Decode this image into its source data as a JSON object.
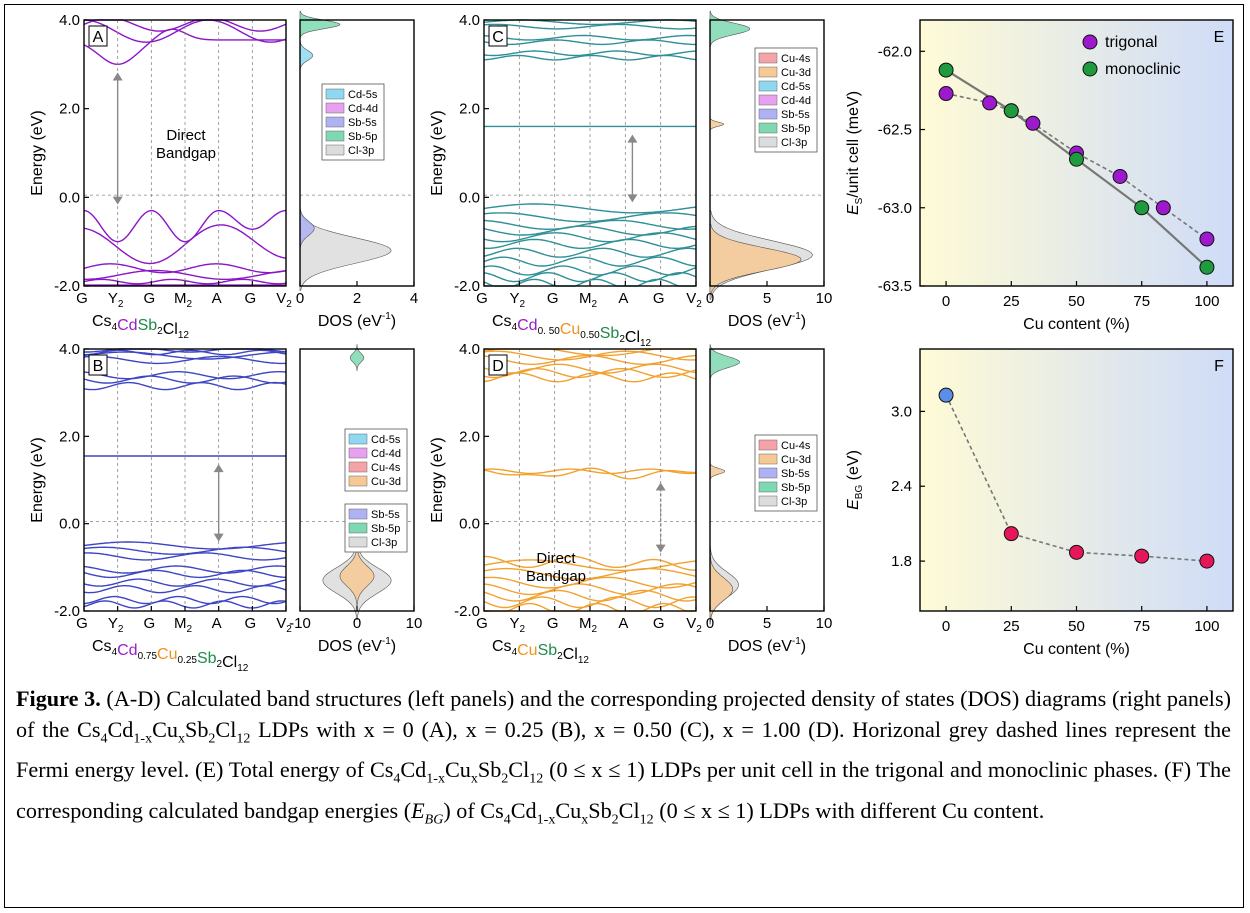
{
  "panels": {
    "A": {
      "letter": "A",
      "annotation": [
        "Direct",
        "Bandgap"
      ],
      "formula": [
        {
          "t": "Cs",
          "c": "k"
        },
        {
          "t": "4",
          "sub": true,
          "c": "k"
        },
        {
          "t": "Cd",
          "c": "purple"
        },
        {
          "t": "Sb",
          "c": "green"
        },
        {
          "t": "2",
          "sub": true,
          "c": "k"
        },
        {
          "t": "Cl",
          "c": "k"
        },
        {
          "t": "12",
          "sub": true,
          "c": "k"
        }
      ],
      "dos_xticks": [
        "0",
        "2",
        "4"
      ],
      "legend": [
        "Cd-5s",
        "Cd-4d",
        "Sb-5s",
        "Sb-5p",
        "Cl-3p"
      ]
    },
    "B": {
      "letter": "B",
      "formula": [
        {
          "t": "Cs",
          "c": "k"
        },
        {
          "t": "4",
          "sub": true,
          "c": "k"
        },
        {
          "t": "Cd",
          "c": "purple"
        },
        {
          "t": "0.75",
          "sub": true,
          "c": "k"
        },
        {
          "t": "Cu",
          "c": "orange"
        },
        {
          "t": "0.25",
          "sub": true,
          "c": "k"
        },
        {
          "t": "Sb",
          "c": "green"
        },
        {
          "t": "2",
          "sub": true,
          "c": "k"
        },
        {
          "t": "Cl",
          "c": "k"
        },
        {
          "t": "12",
          "sub": true,
          "c": "k"
        }
      ],
      "dos_xticks": [
        "-10",
        "0",
        "10"
      ],
      "legend": [
        "Cd-5s",
        "Cd-4d",
        "Cu-4s",
        "Cu-3d"
      ],
      "legend2": [
        "Sb-5s",
        "Sb-5p",
        "Cl-3p"
      ]
    },
    "C": {
      "letter": "C",
      "formula": [
        {
          "t": "Cs",
          "c": "k"
        },
        {
          "t": "4",
          "sub": true,
          "c": "k"
        },
        {
          "t": "Cd",
          "c": "purple"
        },
        {
          "t": "0. 50",
          "sub": true,
          "c": "k"
        },
        {
          "t": "Cu",
          "c": "orange"
        },
        {
          "t": "0.50",
          "sub": true,
          "c": "k"
        },
        {
          "t": "Sb",
          "c": "green"
        },
        {
          "t": "2",
          "sub": true,
          "c": "k"
        },
        {
          "t": "Cl",
          "c": "k"
        },
        {
          "t": "12",
          "sub": true,
          "c": "k"
        }
      ],
      "dos_xticks": [
        "0",
        "5",
        "10"
      ],
      "legend": [
        "Cu-4s",
        "Cu-3d",
        "Cd-5s",
        "Cd-4d",
        "Sb-5s",
        "Sb-5p",
        "Cl-3p"
      ]
    },
    "D": {
      "letter": "D",
      "annotation": [
        "Direct",
        "Bandgap"
      ],
      "formula": [
        {
          "t": "Cs",
          "c": "k"
        },
        {
          "t": "4",
          "sub": true,
          "c": "k"
        },
        {
          "t": "Cu",
          "c": "orange"
        },
        {
          "t": "Sb",
          "c": "green"
        },
        {
          "t": "2",
          "sub": true,
          "c": "k"
        },
        {
          "t": "Cl",
          "c": "k"
        },
        {
          "t": "12",
          "sub": true,
          "c": "k"
        }
      ],
      "dos_xticks": [
        "0",
        "5",
        "10"
      ],
      "legend": [
        "Cu-4s",
        "Cu-3d",
        "Sb-5s",
        "Sb-5p",
        "Cl-3p"
      ]
    }
  },
  "band_common": {
    "kpoints": [
      "G",
      "Y",
      "G",
      "M",
      "A",
      "G",
      "V"
    ],
    "kpoint_subs": [
      "",
      "2",
      "",
      "2",
      "",
      "",
      "2"
    ],
    "yticks": [
      "4.0",
      "2.0",
      "0.0",
      "-2.0"
    ],
    "ylabel": "Energy (eV)",
    "dos_xlabel": "DOS (eV",
    "dos_xlabel_sup": "-1",
    "dos_xlabel_end": ")"
  },
  "colors": {
    "A_bands": "#8b16c8",
    "B_bands": "#3d45c4",
    "C_bands": "#2e8f96",
    "D_bands": "#f2a12e",
    "purple": "#9a1fc9",
    "green": "#1f8a4a",
    "orange": "#f0931c",
    "trigonal": "#9c19cc",
    "monoclinic": "#1f9a3e",
    "bandgap_first": "#5b8ee6",
    "bandgap_rest": "#e5175a"
  },
  "legend_colors": {
    "Cd-5s": "#8fd8f2",
    "Cd-4d": "#e7a1f0",
    "Cu-4s": "#f5a3a8",
    "Cu-3d": "#f6c894",
    "Sb-5s": "#aeb2f2",
    "Sb-5p": "#7ed8b2",
    "Cl-3p": "#dcdcdc"
  },
  "chart_data": [
    {
      "panel": "E",
      "type": "scatter",
      "xlabel": "Cu content (%)",
      "ylabel_main": "E",
      "ylabel_sub": "S",
      "ylabel_rest": "/unit cell (meV)",
      "xlim": [
        -10,
        110
      ],
      "ylim": [
        -63.5,
        -61.8
      ],
      "xticks": [
        0,
        25,
        50,
        75,
        100
      ],
      "yticks": [
        -62.0,
        -62.5,
        -63.0,
        -63.5
      ],
      "ytick_labels": [
        "-62.0",
        "-62.5",
        "-63.0",
        "-63.5"
      ],
      "series": [
        {
          "name": "trigonal",
          "x": [
            0,
            16.7,
            25,
            33.3,
            50,
            66.7,
            83.3,
            100
          ],
          "y": [
            -62.27,
            -62.33,
            -62.38,
            -62.46,
            -62.65,
            -62.8,
            -63.0,
            -63.2
          ]
        },
        {
          "name": "monoclinic",
          "x": [
            0,
            25,
            50,
            75,
            100
          ],
          "y": [
            -62.12,
            -62.38,
            -62.69,
            -63.0,
            -63.38
          ]
        }
      ]
    },
    {
      "panel": "F",
      "type": "scatter",
      "xlabel": "Cu content (%)",
      "ylabel_main": "E",
      "ylabel_sub": "BG",
      "ylabel_rest": " (eV)",
      "xlim": [
        -10,
        110
      ],
      "ylim": [
        1.4,
        3.5
      ],
      "xticks": [
        0,
        25,
        50,
        75,
        100
      ],
      "yticks": [
        1.8,
        2.4,
        3.0
      ],
      "ytick_labels": [
        "1.8",
        "2.4",
        "3.0"
      ],
      "series": [
        {
          "x": [
            0,
            25,
            50,
            75,
            100
          ],
          "y": [
            3.13,
            2.02,
            1.87,
            1.84,
            1.8
          ]
        }
      ]
    }
  ],
  "caption": {
    "bold": "Figure 3.",
    "text": " (A-D) Calculated band structures (left panels) and the corresponding projected density of states (DOS) diagrams (right panels) of the Cs₄Cd₁₋ₓCuₓSb₂Cl₁₂ LDPs with x = 0 (A), x = 0.25 (B), x = 0.50 (C), x = 1.00 (D). Horizonal grey dashed lines represent the Fermi energy level. (E) Total energy of Cs₄Cd₁₋ₓCuₓSb₂Cl₁₂ (0 ≤ x ≤ 1) LDPs per unit cell in the trigonal and monoclinic phases. (F) The corresponding calculated bandgap energies (E_BG) of Cs₄Cd₁₋ₓCuₓSb₂Cl₁₂ (0 ≤ x ≤ 1) LDPs with different Cu content."
  }
}
